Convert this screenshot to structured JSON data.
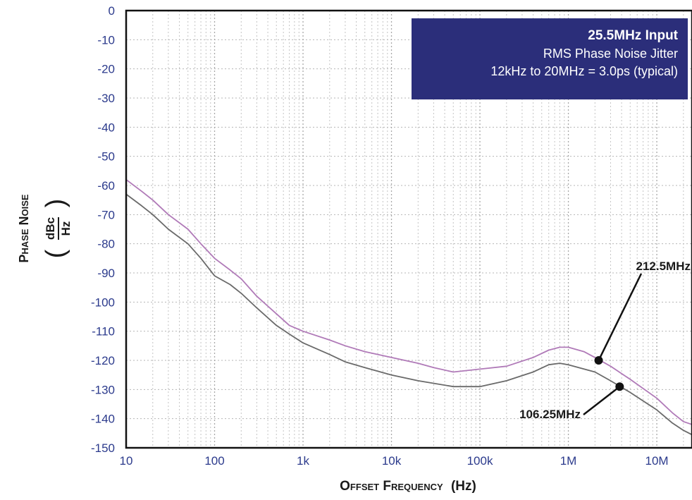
{
  "chart_data": {
    "type": "line",
    "title": "",
    "xlabel_main": "Offset Frequency",
    "xlabel_unit": "(Hz)",
    "ylabel_main": "Phase Noise",
    "ylabel_num": "dBc",
    "ylabel_den": "Hz",
    "x_scale": "log",
    "xlim": [
      10,
      25000000
    ],
    "ylim": [
      -150,
      0
    ],
    "grid": true,
    "x_ticks": [
      {
        "value": 10,
        "label": "10"
      },
      {
        "value": 100,
        "label": "100"
      },
      {
        "value": 1000,
        "label": "1k"
      },
      {
        "value": 10000,
        "label": "10k"
      },
      {
        "value": 100000,
        "label": "100k"
      },
      {
        "value": 1000000,
        "label": "1M"
      },
      {
        "value": 10000000,
        "label": "10M"
      }
    ],
    "y_ticks": [
      0,
      -10,
      -20,
      -30,
      -40,
      -50,
      -60,
      -70,
      -80,
      -90,
      -100,
      -110,
      -120,
      -130,
      -140,
      -150
    ],
    "series": [
      {
        "name": "212.5MHz",
        "color": "#b07ab8",
        "points": [
          [
            10,
            -58
          ],
          [
            15,
            -62
          ],
          [
            20,
            -65
          ],
          [
            30,
            -70
          ],
          [
            50,
            -75
          ],
          [
            70,
            -80
          ],
          [
            100,
            -85
          ],
          [
            150,
            -89
          ],
          [
            200,
            -92
          ],
          [
            300,
            -98
          ],
          [
            500,
            -104
          ],
          [
            700,
            -108
          ],
          [
            1000,
            -110
          ],
          [
            2000,
            -113
          ],
          [
            3000,
            -115
          ],
          [
            5000,
            -117
          ],
          [
            10000,
            -119
          ],
          [
            20000,
            -121
          ],
          [
            30000,
            -122.5
          ],
          [
            50000,
            -124
          ],
          [
            70000,
            -123.5
          ],
          [
            100000,
            -123
          ],
          [
            200000,
            -122
          ],
          [
            400000,
            -119
          ],
          [
            600000,
            -116.5
          ],
          [
            800000,
            -115.5
          ],
          [
            1000000,
            -115.5
          ],
          [
            1500000,
            -117
          ],
          [
            2000000,
            -119
          ],
          [
            3000000,
            -122
          ],
          [
            5000000,
            -126.5
          ],
          [
            10000000,
            -133
          ],
          [
            15000000,
            -138
          ],
          [
            20000000,
            -141
          ],
          [
            25000000,
            -142
          ]
        ]
      },
      {
        "name": "106.25MHz",
        "color": "#6a6a6a",
        "points": [
          [
            10,
            -63
          ],
          [
            15,
            -67
          ],
          [
            20,
            -70
          ],
          [
            30,
            -75
          ],
          [
            50,
            -80
          ],
          [
            70,
            -85
          ],
          [
            100,
            -91
          ],
          [
            150,
            -94
          ],
          [
            200,
            -97
          ],
          [
            300,
            -102
          ],
          [
            500,
            -108
          ],
          [
            700,
            -111
          ],
          [
            1000,
            -114
          ],
          [
            2000,
            -118
          ],
          [
            3000,
            -120.5
          ],
          [
            5000,
            -122.5
          ],
          [
            10000,
            -125
          ],
          [
            20000,
            -127
          ],
          [
            50000,
            -129
          ],
          [
            100000,
            -129
          ],
          [
            200000,
            -127
          ],
          [
            400000,
            -124
          ],
          [
            600000,
            -121.5
          ],
          [
            800000,
            -121
          ],
          [
            1000000,
            -121.5
          ],
          [
            2000000,
            -124
          ],
          [
            3000000,
            -127
          ],
          [
            5000000,
            -131
          ],
          [
            10000000,
            -137
          ],
          [
            15000000,
            -141.5
          ],
          [
            20000000,
            -144
          ],
          [
            25000000,
            -145.5
          ]
        ]
      }
    ],
    "annotations": [
      {
        "label": "212.5MHz",
        "series": "212.5MHz",
        "x": 2200000,
        "y": -120
      },
      {
        "label": "106.25MHz",
        "series": "106.25MHz",
        "x": 3800000,
        "y": -129
      }
    ],
    "info_box": {
      "line1": "25.5MHz Input",
      "line2": "RMS Phase Noise Jitter",
      "line3": "12kHz to 20MHz = 3.0ps (typical)",
      "background": "#2b2e7a"
    }
  }
}
